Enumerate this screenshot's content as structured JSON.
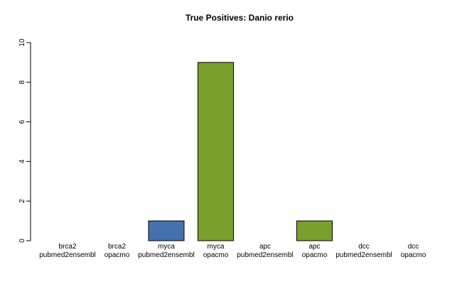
{
  "chart_data": {
    "type": "bar",
    "title": "True Positives: Danio rerio",
    "xlabel": "",
    "ylabel": "",
    "ylim": [
      0,
      10
    ],
    "yticks": [
      0,
      2,
      4,
      6,
      8,
      10
    ],
    "grid": false,
    "legend": "none",
    "categories": [
      {
        "gene": "brca2",
        "method": "pubmed2ensembl"
      },
      {
        "gene": "brca2",
        "method": "opacmo"
      },
      {
        "gene": "myca",
        "method": "pubmed2ensembl"
      },
      {
        "gene": "myca",
        "method": "opacmo"
      },
      {
        "gene": "apc",
        "method": "pubmed2ensembl"
      },
      {
        "gene": "apc",
        "method": "opacmo"
      },
      {
        "gene": "dcc",
        "method": "pubmed2ensembl"
      },
      {
        "gene": "dcc",
        "method": "opacmo"
      }
    ],
    "values": [
      0,
      0,
      1,
      9,
      0,
      1,
      0,
      0
    ],
    "colors": {
      "pubmed2ensembl": "#4472ae",
      "opacmo": "#78a02a"
    }
  }
}
